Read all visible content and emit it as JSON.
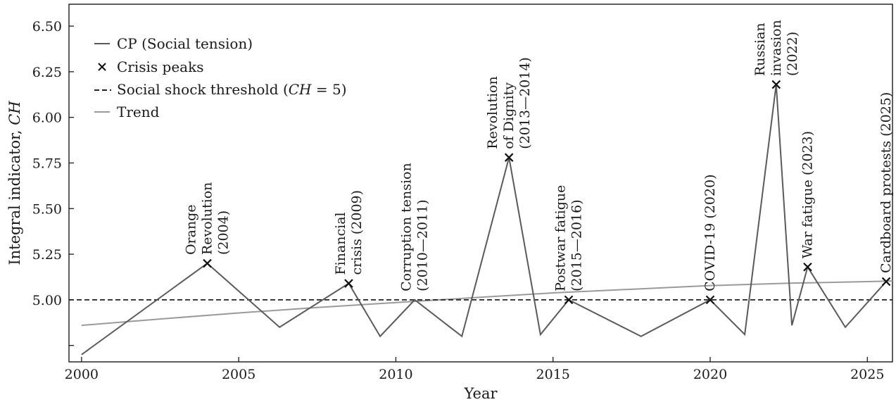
{
  "chart_data": {
    "type": "line",
    "xlabel": "Year",
    "ylabel": "Integral indicator, ",
    "ylabel_italic": "CH",
    "xlim": [
      1999.6,
      2025.8
    ],
    "ylim": [
      4.66,
      6.62
    ],
    "xticks": [
      2000,
      2005,
      2010,
      2015,
      2020,
      2025
    ],
    "xtick_labels": [
      "2000",
      "2005",
      "2010",
      "2015",
      "2020",
      "2025"
    ],
    "yticks": [
      4.75,
      5.0,
      5.25,
      5.5,
      5.75,
      6.0,
      6.25,
      6.5
    ],
    "ytick_labels": [
      "",
      "5.00",
      "5.25",
      "5.50",
      "5.75",
      "6.00",
      "6.25",
      "6.50"
    ],
    "grid": false,
    "legend_position": "top-left",
    "colors": {
      "series": "#5a5a5a",
      "trend": "#9a9a9a",
      "peaks": "#111111",
      "threshold": "#222222",
      "axis": "#1a1a1a"
    },
    "series": [
      {
        "name": "CP (Social tension)",
        "style": "solid",
        "x": [
          2000,
          2004,
          2006.3,
          2008.5,
          2009.5,
          2010.6,
          2012.1,
          2013.6,
          2014.6,
          2015.5,
          2017.8,
          2020,
          2021.1,
          2022.1,
          2022.6,
          2023.1,
          2024.3,
          2025.6
        ],
        "y": [
          4.7,
          5.2,
          4.85,
          5.09,
          4.8,
          5.0,
          4.8,
          5.78,
          4.81,
          5.0,
          4.8,
          5.0,
          4.81,
          6.18,
          4.86,
          5.18,
          4.85,
          5.1
        ]
      },
      {
        "name": "Crisis peaks",
        "style": "marker-x",
        "x": [
          2004,
          2008.5,
          2013.6,
          2015.5,
          2020,
          2022.1,
          2023.1,
          2025.6
        ],
        "y": [
          5.2,
          5.09,
          5.78,
          5.0,
          5.0,
          6.18,
          5.18,
          5.1
        ]
      },
      {
        "name": "Social shock threshold",
        "style": "dashed",
        "y_constant": 5.0
      },
      {
        "name": "Trend",
        "style": "solid-light",
        "x": [
          2000,
          2002.5,
          2005,
          2007.5,
          2010,
          2012.5,
          2015,
          2017.5,
          2020,
          2022.5,
          2025,
          2025.8
        ],
        "y": [
          4.86,
          4.895,
          4.928,
          4.958,
          4.985,
          5.012,
          5.038,
          5.058,
          5.078,
          5.091,
          5.1,
          5.103
        ]
      }
    ],
    "legend": [
      {
        "label": "CP (Social tension)",
        "kind": "line"
      },
      {
        "label": "Crisis peaks",
        "kind": "x"
      },
      {
        "label": "Social shock threshold (",
        "label_italic": "CH",
        "label_tail": " = 5)",
        "kind": "dashed"
      },
      {
        "label": "Trend",
        "kind": "light"
      }
    ],
    "annotations": [
      {
        "x": 2004,
        "y": 5.2,
        "lines": [
          "Orange",
          "Revolution",
          "(2004)"
        ]
      },
      {
        "x": 2008.5,
        "y": 5.09,
        "lines": [
          "Financial",
          "crisis (2009)"
        ]
      },
      {
        "x": 2010.6,
        "y": 5.0,
        "lines": [
          "Corruption tension",
          "(2010—2011)"
        ]
      },
      {
        "x": 2013.6,
        "y": 5.78,
        "lines": [
          "Revolution",
          "of Dignity",
          "(2013—2014)"
        ]
      },
      {
        "x": 2015.5,
        "y": 5.0,
        "lines": [
          "Postwar fatigue",
          "(2015—2016)"
        ]
      },
      {
        "x": 2020,
        "y": 5.0,
        "lines": [
          "COVID-19 (2020)"
        ]
      },
      {
        "x": 2022.1,
        "y": 6.18,
        "lines": [
          "Russian",
          "invasion",
          "(2022)"
        ]
      },
      {
        "x": 2023.1,
        "y": 5.18,
        "lines": [
          "War fatigue (2023)"
        ]
      },
      {
        "x": 2025.6,
        "y": 5.1,
        "lines": [
          "Cardboard protests (2025)"
        ]
      }
    ]
  }
}
